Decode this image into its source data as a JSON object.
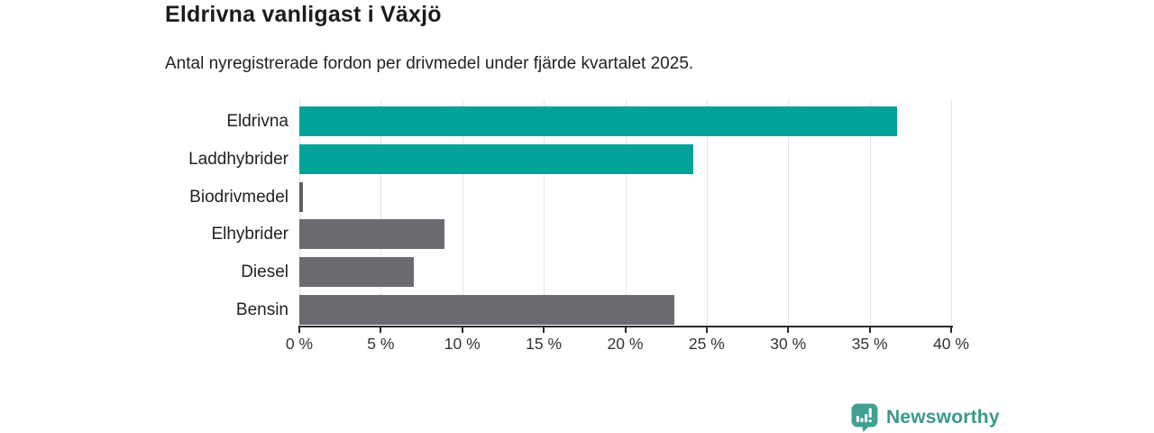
{
  "header": {
    "title": "Eldrivna vanligast i Växjö",
    "subtitle": "Antal nyregistrerade fordon per drivmedel under fjärde kvartalet 2025."
  },
  "chart_data": {
    "type": "bar",
    "orientation": "horizontal",
    "title": "Eldrivna vanligast i Växjö",
    "subtitle": "Antal nyregistrerade fordon per drivmedel under fjärde kvartalet 2025.",
    "categories": [
      "Eldrivna",
      "Laddhybrider",
      "Biodrivmedel",
      "Elhybrider",
      "Diesel",
      "Bensin"
    ],
    "values": [
      36.7,
      24.2,
      0.2,
      8.9,
      7.0,
      23.0
    ],
    "unit": "%",
    "bar_colors": [
      "#04a299",
      "#04a299",
      "#5d5d61",
      "#6a6a70",
      "#6a6a70",
      "#6a6a70"
    ],
    "xlim": [
      0,
      40
    ],
    "x_tick_step": 5,
    "x_tick_labels": [
      "0 %",
      "5 %",
      "10 %",
      "15 %",
      "20 %",
      "25 %",
      "30 %",
      "35 %",
      "40 %"
    ],
    "xlabel": "",
    "ylabel": "",
    "grid": true,
    "legend": false
  },
  "colors": {
    "teal_bar": "#04a299",
    "gray_bar": "#6a6a70",
    "gridline": "#e4e4e4",
    "axis": "#2b2b2b",
    "logo_icon": "#41a091",
    "logo_text": "#3a988b"
  },
  "footer": {
    "brand_name": "Newsworthy",
    "logo_icon": "bar-chart-speech-bubble-icon"
  }
}
